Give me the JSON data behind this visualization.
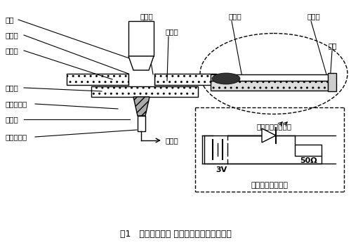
{
  "title": "图1   悬浊液观察片 照明头结构及安装示意图",
  "title_fontsize": 9,
  "bg_color": "#ffffff",
  "label_assembly": "观察片装配结构图",
  "label_circuit": "照明头电源接线图",
  "label_power": "接电源",
  "label_3v": "3V",
  "label_50ohm": "50Ω",
  "left_labels": [
    [
      "物镜",
      18,
      295,
      175,
      230
    ],
    [
      "观察片",
      18,
      270,
      160,
      215
    ],
    [
      "载物台",
      18,
      248,
      148,
      200
    ],
    [
      "遮光器",
      18,
      192,
      140,
      185
    ],
    [
      "发光二极管",
      18,
      170,
      160,
      162
    ],
    [
      "橡皮塞",
      18,
      148,
      178,
      143
    ],
    [
      "二极管连线",
      18,
      122,
      185,
      130
    ]
  ],
  "top_labels": [
    [
      "盖玻片",
      198,
      318,
      210,
      210
    ],
    [
      "载玻片",
      235,
      298,
      230,
      205
    ]
  ],
  "tr_labels": [
    [
      "悬浊液",
      318,
      318,
      340,
      120
    ],
    [
      "密封油",
      430,
      318,
      468,
      118
    ],
    [
      "胶带",
      473,
      270,
      478,
      125
    ]
  ]
}
